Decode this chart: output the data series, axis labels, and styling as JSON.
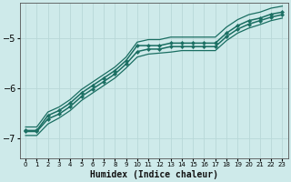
{
  "xlabel": "Humidex (Indice chaleur)",
  "ylabel": "",
  "xlim": [
    -0.5,
    23.5
  ],
  "ylim": [
    -7.4,
    -4.3
  ],
  "bg_color": "#ceeaea",
  "line_color": "#1a6e62",
  "grid_color": "#b8d8d8",
  "xticks": [
    0,
    1,
    2,
    3,
    4,
    5,
    6,
    7,
    8,
    9,
    10,
    11,
    12,
    13,
    14,
    15,
    16,
    17,
    18,
    19,
    20,
    21,
    22,
    23
  ],
  "yticks": [
    -7,
    -6,
    -5
  ],
  "series": [
    {
      "x": [
        0,
        1,
        2,
        3,
        4,
        5,
        6,
        7,
        8,
        9,
        10,
        11,
        12,
        13,
        14,
        15,
        16,
        17,
        18,
        19,
        20,
        21,
        22,
        23
      ],
      "y": [
        -6.85,
        -6.85,
        -6.55,
        -6.45,
        -6.3,
        -6.1,
        -5.95,
        -5.8,
        -5.65,
        -5.45,
        -5.15,
        -5.15,
        -5.15,
        -5.1,
        -5.1,
        -5.1,
        -5.1,
        -5.1,
        -4.9,
        -4.75,
        -4.65,
        -4.6,
        -4.52,
        -4.48
      ],
      "marker": "D",
      "markersize": 2.2,
      "linewidth": 1.1
    },
    {
      "x": [
        0,
        1,
        2,
        3,
        4,
        5,
        6,
        7,
        8,
        9,
        10,
        11,
        12,
        13,
        14,
        15,
        16,
        17,
        18,
        19,
        20,
        21,
        22,
        23
      ],
      "y": [
        -6.87,
        -6.87,
        -6.62,
        -6.52,
        -6.37,
        -6.17,
        -6.02,
        -5.87,
        -5.72,
        -5.52,
        -5.27,
        -5.22,
        -5.22,
        -5.17,
        -5.17,
        -5.17,
        -5.17,
        -5.17,
        -4.97,
        -4.82,
        -4.72,
        -4.65,
        -4.58,
        -4.53
      ],
      "marker": "D",
      "markersize": 2.2,
      "linewidth": 1.1
    },
    {
      "x": [
        0,
        1,
        2,
        3,
        4,
        5,
        6,
        7,
        8,
        9,
        10,
        11,
        12,
        13,
        14,
        15,
        16,
        17,
        18,
        19,
        20,
        21,
        22,
        23
      ],
      "y": [
        -6.95,
        -6.95,
        -6.72,
        -6.6,
        -6.45,
        -6.25,
        -6.1,
        -5.95,
        -5.8,
        -5.6,
        -5.38,
        -5.32,
        -5.3,
        -5.28,
        -5.25,
        -5.25,
        -5.25,
        -5.25,
        -5.05,
        -4.9,
        -4.8,
        -4.73,
        -4.65,
        -4.6
      ],
      "marker": null,
      "markersize": 0,
      "linewidth": 0.9
    },
    {
      "x": [
        0,
        1,
        2,
        3,
        4,
        5,
        6,
        7,
        8,
        9,
        10,
        11,
        12,
        13,
        14,
        15,
        16,
        17,
        18,
        19,
        20,
        21,
        22,
        23
      ],
      "y": [
        -6.78,
        -6.78,
        -6.48,
        -6.38,
        -6.23,
        -6.03,
        -5.88,
        -5.73,
        -5.58,
        -5.38,
        -5.08,
        -5.03,
        -5.03,
        -4.98,
        -4.98,
        -4.98,
        -4.98,
        -4.98,
        -4.78,
        -4.63,
        -4.53,
        -4.48,
        -4.4,
        -4.36
      ],
      "marker": null,
      "markersize": 0,
      "linewidth": 0.9
    }
  ]
}
